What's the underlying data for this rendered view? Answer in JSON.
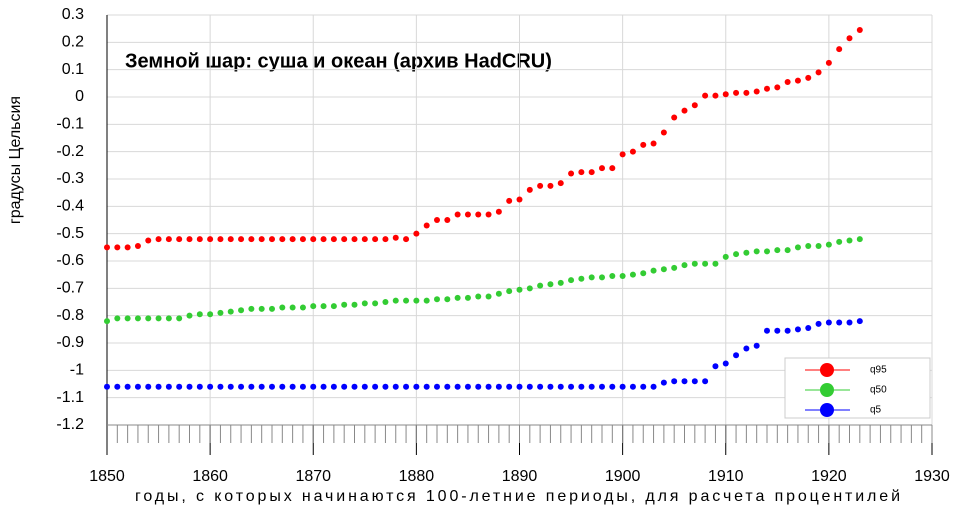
{
  "chart_data": {
    "type": "scatter",
    "title": "Земной шар: суша и океан (архив HadCRU)",
    "xlabel": "годы, с которых начинаются 100-летние периоды, для расчета процентилей",
    "ylabel": "градусы Цельсия",
    "x": [
      1850,
      1851,
      1852,
      1853,
      1854,
      1855,
      1856,
      1857,
      1858,
      1859,
      1860,
      1861,
      1862,
      1863,
      1864,
      1865,
      1866,
      1867,
      1868,
      1869,
      1870,
      1871,
      1872,
      1873,
      1874,
      1875,
      1876,
      1877,
      1878,
      1879,
      1880,
      1881,
      1882,
      1883,
      1884,
      1885,
      1886,
      1887,
      1888,
      1889,
      1890,
      1891,
      1892,
      1893,
      1894,
      1895,
      1896,
      1897,
      1898,
      1899,
      1900,
      1901,
      1902,
      1903,
      1904,
      1905,
      1906,
      1907,
      1908,
      1909,
      1910,
      1911,
      1912,
      1913,
      1914,
      1915,
      1916,
      1917,
      1918,
      1919,
      1920,
      1921,
      1922,
      1923
    ],
    "series": [
      {
        "name": "q95",
        "color": "#ff0000",
        "values": [
          -0.55,
          -0.55,
          -0.55,
          -0.545,
          -0.525,
          -0.52,
          -0.52,
          -0.52,
          -0.52,
          -0.52,
          -0.52,
          -0.52,
          -0.52,
          -0.52,
          -0.52,
          -0.52,
          -0.52,
          -0.52,
          -0.52,
          -0.52,
          -0.52,
          -0.52,
          -0.52,
          -0.52,
          -0.52,
          -0.52,
          -0.52,
          -0.52,
          -0.515,
          -0.52,
          -0.5,
          -0.47,
          -0.45,
          -0.45,
          -0.43,
          -0.43,
          -0.43,
          -0.43,
          -0.42,
          -0.38,
          -0.375,
          -0.34,
          -0.325,
          -0.325,
          -0.315,
          -0.28,
          -0.275,
          -0.275,
          -0.26,
          -0.26,
          -0.21,
          -0.2,
          -0.175,
          -0.17,
          -0.13,
          -0.075,
          -0.05,
          -0.03,
          0.005,
          0.005,
          0.01,
          0.015,
          0.015,
          0.02,
          0.03,
          0.035,
          0.055,
          0.06,
          0.07,
          0.09,
          0.125,
          0.175,
          0.215,
          0.245
        ]
      },
      {
        "name": "q50",
        "color": "#33cc33",
        "values": [
          -0.82,
          -0.81,
          -0.81,
          -0.81,
          -0.81,
          -0.81,
          -0.81,
          -0.81,
          -0.8,
          -0.795,
          -0.795,
          -0.79,
          -0.785,
          -0.78,
          -0.775,
          -0.775,
          -0.775,
          -0.77,
          -0.77,
          -0.77,
          -0.765,
          -0.765,
          -0.765,
          -0.76,
          -0.76,
          -0.755,
          -0.755,
          -0.75,
          -0.745,
          -0.745,
          -0.745,
          -0.745,
          -0.74,
          -0.74,
          -0.735,
          -0.735,
          -0.73,
          -0.73,
          -0.72,
          -0.71,
          -0.705,
          -0.7,
          -0.69,
          -0.685,
          -0.68,
          -0.67,
          -0.665,
          -0.66,
          -0.66,
          -0.655,
          -0.655,
          -0.65,
          -0.645,
          -0.635,
          -0.63,
          -0.625,
          -0.615,
          -0.61,
          -0.61,
          -0.61,
          -0.585,
          -0.575,
          -0.57,
          -0.565,
          -0.565,
          -0.56,
          -0.56,
          -0.55,
          -0.545,
          -0.545,
          -0.54,
          -0.53,
          -0.525,
          -0.52
        ]
      },
      {
        "name": "q5",
        "color": "#0000ff",
        "values": [
          -1.06,
          -1.06,
          -1.06,
          -1.06,
          -1.06,
          -1.06,
          -1.06,
          -1.06,
          -1.06,
          -1.06,
          -1.06,
          -1.06,
          -1.06,
          -1.06,
          -1.06,
          -1.06,
          -1.06,
          -1.06,
          -1.06,
          -1.06,
          -1.06,
          -1.06,
          -1.06,
          -1.06,
          -1.06,
          -1.06,
          -1.06,
          -1.06,
          -1.06,
          -1.06,
          -1.06,
          -1.06,
          -1.06,
          -1.06,
          -1.06,
          -1.06,
          -1.06,
          -1.06,
          -1.06,
          -1.06,
          -1.06,
          -1.06,
          -1.06,
          -1.06,
          -1.06,
          -1.06,
          -1.06,
          -1.06,
          -1.06,
          -1.06,
          -1.06,
          -1.06,
          -1.06,
          -1.06,
          -1.045,
          -1.04,
          -1.04,
          -1.04,
          -1.04,
          -0.985,
          -0.975,
          -0.945,
          -0.92,
          -0.91,
          -0.855,
          -0.855,
          -0.855,
          -0.85,
          -0.845,
          -0.83,
          -0.825,
          -0.825,
          -0.825,
          -0.82
        ]
      }
    ],
    "xlim": [
      1850,
      1930
    ],
    "xticks": [
      1850,
      1860,
      1870,
      1880,
      1890,
      1900,
      1910,
      1920,
      1930
    ],
    "xminorticks": [
      1850,
      1851,
      1852,
      1853,
      1854,
      1855,
      1856,
      1857,
      1858,
      1859,
      1860,
      1861,
      1862,
      1863,
      1864,
      1865,
      1866,
      1867,
      1868,
      1869,
      1870,
      1871,
      1872,
      1873,
      1874,
      1875,
      1876,
      1877,
      1878,
      1879,
      1880,
      1881,
      1882,
      1883,
      1884,
      1885,
      1886,
      1887,
      1888,
      1889,
      1890,
      1891,
      1892,
      1893,
      1894,
      1895,
      1896,
      1897,
      1898,
      1899,
      1900,
      1901,
      1902,
      1903,
      1904,
      1905,
      1906,
      1907,
      1908,
      1909,
      1910,
      1911,
      1912,
      1913,
      1914,
      1915,
      1916,
      1917,
      1918,
      1919,
      1920,
      1921,
      1922,
      1923,
      1924,
      1925,
      1926,
      1927,
      1928,
      1929,
      1930
    ],
    "ylim": [
      -1.2,
      0.3
    ],
    "yticks": [
      0.3,
      0.2,
      0.1,
      0,
      -0.1,
      -0.2,
      -0.3,
      -0.4,
      -0.5,
      -0.6,
      -0.7,
      -0.8,
      -0.9,
      -1,
      -1.1,
      -1.2
    ],
    "grid": true,
    "legend": "lower right"
  }
}
